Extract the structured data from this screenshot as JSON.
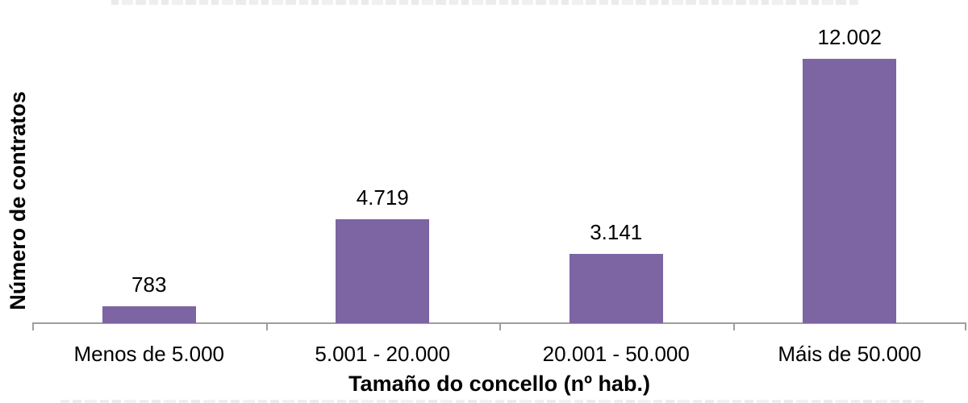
{
  "chart_data": {
    "type": "bar",
    "title": "",
    "categories": [
      "Menos de 5.000",
      "5.001 - 20.000",
      "20.001 - 50.000",
      "Máis de 50.000"
    ],
    "values": [
      783,
      4719,
      3141,
      12002
    ],
    "value_labels": [
      "783",
      "4.719",
      "3.141",
      "12.002"
    ],
    "xlabel": "Tamaño do concello (nº hab.)",
    "ylabel": "Número de contratos",
    "ylim": [
      0,
      14000
    ],
    "grid": false,
    "legend": "none",
    "bar_color": "#7D64A2",
    "axis_color": "#9E9E9E",
    "label_color": "#000000"
  }
}
